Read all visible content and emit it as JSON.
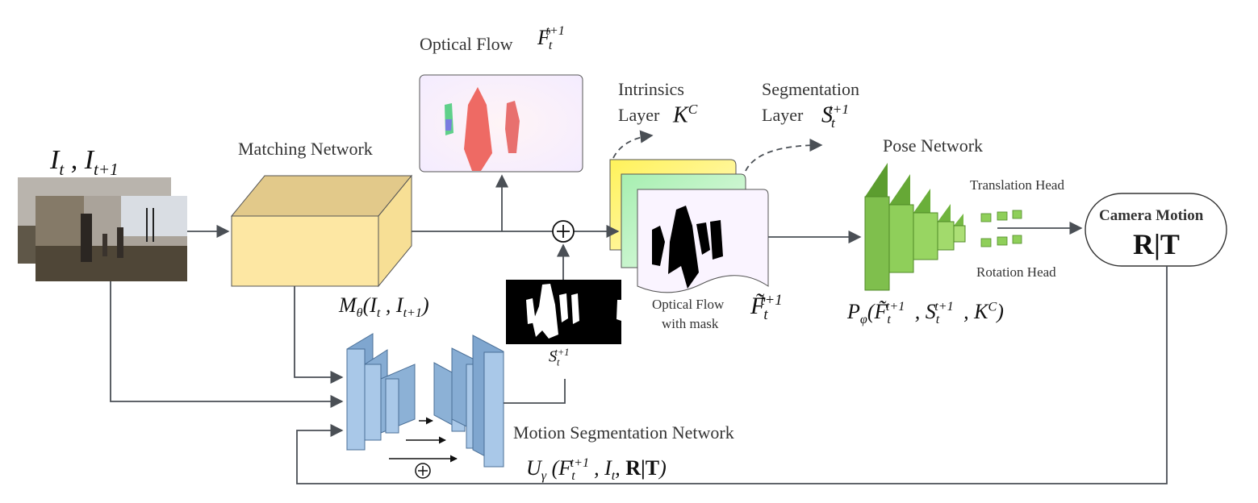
{
  "labels": {
    "input_frames": "It , It+1",
    "matching_network": "Matching Network",
    "optical_flow": "Optical Flow",
    "intrinsics_layer_line1": "Intrinsics",
    "intrinsics_layer_line2": "Layer",
    "segmentation_layer_line1": "Segmentation",
    "segmentation_layer_line2": "Layer",
    "pose_network": "Pose Network",
    "translation_head": "Translation Head",
    "rotation_head": "Rotation Head",
    "camera_motion": "Camera Motion",
    "camera_motion_value": "R|T",
    "optical_flow_with_mask_line1": "Optical Flow",
    "optical_flow_with_mask_line2": "with mask",
    "motion_segmentation_network": "Motion Segmentation Network"
  },
  "math": {
    "flow_symbol": "F",
    "flow_sub": "t",
    "flow_sup": "t+1",
    "intrinsics_symbol": "K",
    "intrinsics_sup": "C",
    "seg_symbol": "S",
    "matching_fn": "Mθ(It , It+1)",
    "pose_fn": "Pφ(F̃tt+1 , Stt+1 , KC)",
    "masked_flow": "F̃tt+1",
    "seg_output": "Stt+1",
    "motion_seg_fn": "Uγ (Ftt+1, It, R|T)"
  },
  "colors": {
    "matching_box": "#fde7a3",
    "seg_unet": "#a9c8e8",
    "pose_net": "#7fbf4d",
    "arrow": "#4a4f55"
  }
}
